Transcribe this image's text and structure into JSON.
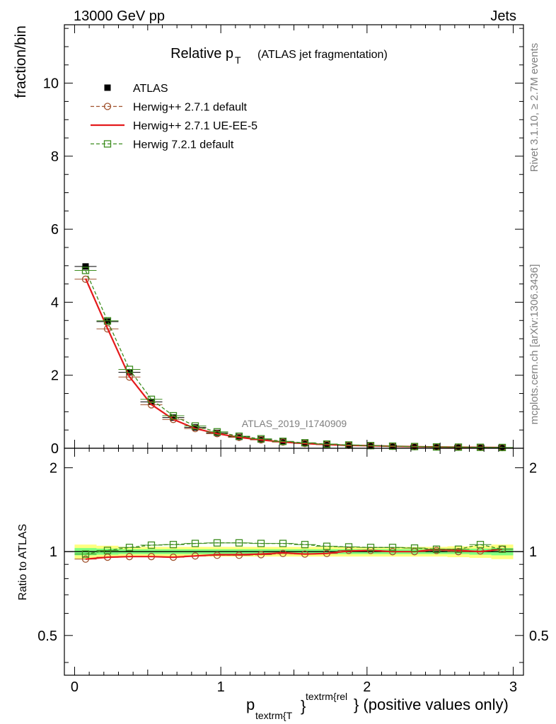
{
  "header": {
    "left": "13000 GeV pp",
    "right": "Jets"
  },
  "side_labels": {
    "rivet": "Rivet 3.1.10, ≥ 2.7M events",
    "mcplots": "mcplots.cern.ch [arXiv:1306.3436]"
  },
  "colors": {
    "atlas": "#000000",
    "herwig_pp_default": "#a0522d",
    "herwig_pp_ueee5": "#e41a1c",
    "herwig_721": "#3c8c1e",
    "band_inner": "#7fff7f",
    "band_outer": "#ffff7f"
  },
  "chart_data": [
    {
      "type": "line",
      "title": "Relative p",
      "title_sub": "T",
      "title_suffix": "(ATLAS jet fragmentation)",
      "watermark": "ATLAS_2019_I1740909",
      "ylabel": "fraction/bin",
      "xlim": [
        -0.07,
        3.07
      ],
      "ylim": [
        0,
        11.6
      ],
      "yticks": [
        0,
        2,
        4,
        6,
        8,
        10
      ],
      "ytick_labels": [
        "0",
        "2",
        "4",
        "6",
        "8",
        "10"
      ],
      "legend_position": "top-left",
      "x": [
        0.075,
        0.225,
        0.375,
        0.525,
        0.675,
        0.825,
        0.975,
        1.125,
        1.275,
        1.425,
        1.575,
        1.725,
        1.875,
        2.025,
        2.175,
        2.325,
        2.475,
        2.625,
        2.775,
        2.925
      ],
      "series": [
        {
          "name": "ATLAS",
          "style": "data",
          "values": [
            4.98,
            3.47,
            2.08,
            1.27,
            0.84,
            0.57,
            0.42,
            0.31,
            0.24,
            0.18,
            0.14,
            0.11,
            0.085,
            0.07,
            0.055,
            0.045,
            0.035,
            0.03,
            0.025,
            0.02
          ]
        },
        {
          "name": "Herwig++ 2.7.1 default",
          "style": "dashed-circle",
          "values": [
            4.63,
            3.27,
            1.95,
            1.19,
            0.79,
            0.54,
            0.4,
            0.3,
            0.23,
            0.17,
            0.13,
            0.1,
            0.08,
            0.07,
            0.055,
            0.045,
            0.035,
            0.03,
            0.025,
            0.02
          ]
        },
        {
          "name": "Herwig++ 2.7.1 UE-EE-5",
          "style": "solid",
          "values": [
            4.65,
            3.28,
            1.96,
            1.2,
            0.79,
            0.54,
            0.4,
            0.3,
            0.23,
            0.17,
            0.13,
            0.1,
            0.08,
            0.07,
            0.055,
            0.045,
            0.035,
            0.03,
            0.025,
            0.02
          ]
        },
        {
          "name": "Herwig 7.2.1 default",
          "style": "dashed-square",
          "values": [
            4.87,
            3.49,
            2.16,
            1.34,
            0.89,
            0.61,
            0.45,
            0.33,
            0.26,
            0.19,
            0.15,
            0.115,
            0.09,
            0.073,
            0.058,
            0.047,
            0.036,
            0.031,
            0.026,
            0.021
          ]
        }
      ]
    },
    {
      "type": "line",
      "ylabel": "Ratio to ATLAS",
      "xlabel": "p",
      "xlabel_sub": "textrm{T",
      "xlabel_sup": "textrm{rel",
      "xlabel_brace": "}",
      "xlabel_suffix": "} (positive values only)",
      "xlim": [
        -0.07,
        3.07
      ],
      "ylim": [
        0.36,
        2.35
      ],
      "log_y": true,
      "yticks": [
        0.5,
        1,
        2
      ],
      "ytick_labels": [
        "0.5",
        "1",
        "2"
      ],
      "xticks": [
        0,
        1,
        2,
        3
      ],
      "xtick_labels": [
        "0",
        "1",
        "2",
        "3"
      ],
      "x": [
        0.075,
        0.225,
        0.375,
        0.525,
        0.675,
        0.825,
        0.975,
        1.125,
        1.275,
        1.425,
        1.575,
        1.725,
        1.875,
        2.025,
        2.175,
        2.325,
        2.475,
        2.625,
        2.775,
        2.925
      ],
      "band_inner": [
        0.03,
        0.025,
        0.02,
        0.02,
        0.02,
        0.02,
        0.02,
        0.02,
        0.02,
        0.02,
        0.02,
        0.02,
        0.02,
        0.02,
        0.02,
        0.02,
        0.02,
        0.02,
        0.025,
        0.03
      ],
      "band_outer": [
        0.06,
        0.05,
        0.04,
        0.04,
        0.04,
        0.04,
        0.04,
        0.04,
        0.04,
        0.04,
        0.04,
        0.04,
        0.04,
        0.04,
        0.04,
        0.04,
        0.04,
        0.045,
        0.05,
        0.06
      ],
      "series": [
        {
          "name": "Herwig++ 2.7.1 default",
          "style": "dashed-circle",
          "values": [
            0.94,
            0.955,
            0.96,
            0.96,
            0.955,
            0.965,
            0.97,
            0.97,
            0.975,
            0.985,
            0.98,
            0.985,
            1.01,
            1.01,
            1.0,
            1.0,
            1.01,
            1.0,
            1.005,
            1.02
          ]
        },
        {
          "name": "Herwig++ 2.7.1 UE-EE-5",
          "style": "solid",
          "values": [
            0.94,
            0.955,
            0.96,
            0.96,
            0.955,
            0.965,
            0.975,
            0.975,
            0.98,
            0.99,
            0.98,
            0.985,
            1.005,
            1.01,
            1.0,
            1.0,
            1.02,
            1.01,
            1.0,
            1.02
          ]
        },
        {
          "name": "Herwig 7.2.1 default",
          "style": "dashed-square",
          "values": [
            0.98,
            1.01,
            1.035,
            1.055,
            1.06,
            1.07,
            1.075,
            1.075,
            1.07,
            1.07,
            1.06,
            1.045,
            1.04,
            1.035,
            1.035,
            1.03,
            1.02,
            1.02,
            1.06,
            1.02
          ]
        }
      ]
    }
  ]
}
